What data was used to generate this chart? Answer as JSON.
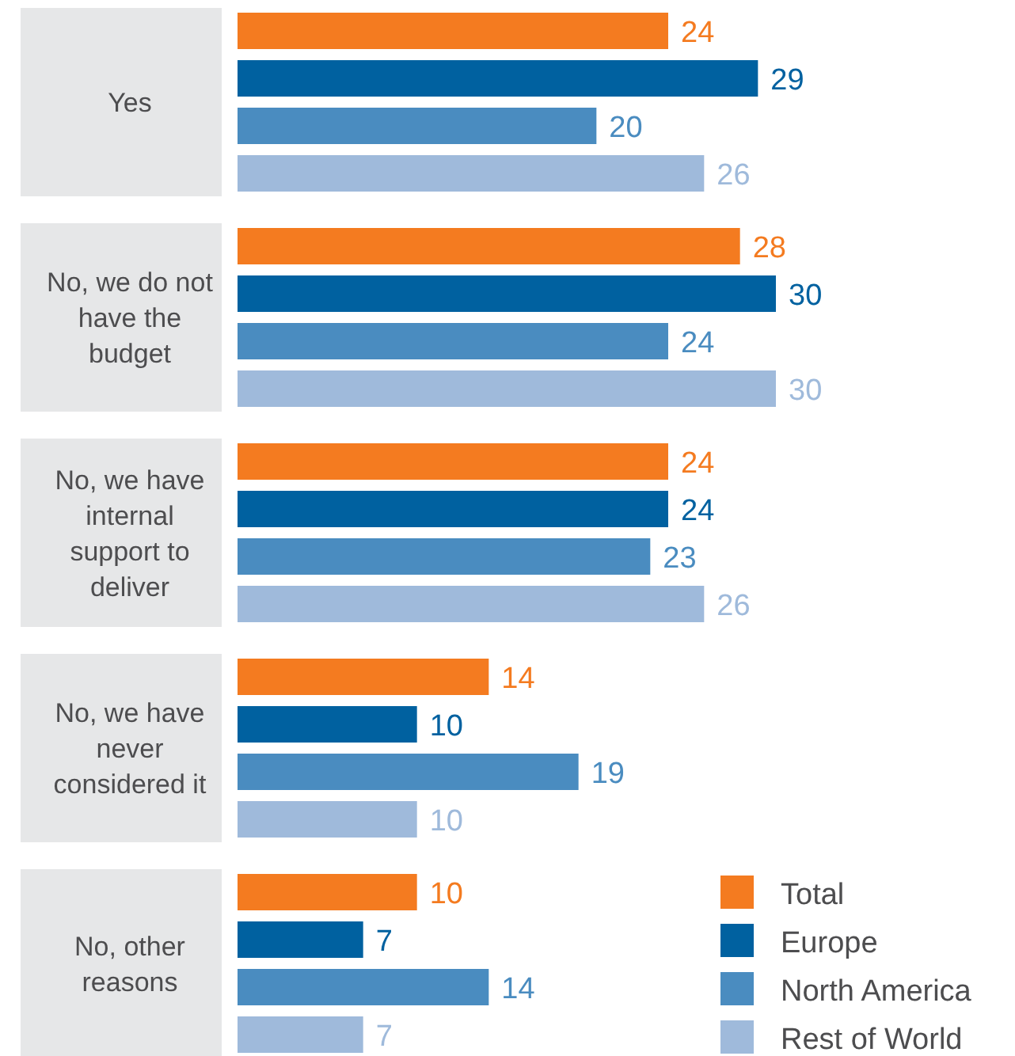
{
  "chart_data": {
    "type": "bar",
    "orientation": "horizontal",
    "categories": [
      "Yes",
      "No, we do not have the budget",
      "No, we have internal support to deliver",
      "No, we have never considered it",
      "No, other reasons"
    ],
    "series": [
      {
        "name": "Total",
        "color": "#f47b20",
        "values": [
          24,
          28,
          24,
          14,
          10
        ]
      },
      {
        "name": "Europe",
        "color": "#0061a0",
        "values": [
          29,
          30,
          24,
          10,
          7
        ]
      },
      {
        "name": "North America",
        "color": "#4a8cc0",
        "values": [
          20,
          24,
          23,
          19,
          14
        ]
      },
      {
        "name": "Rest of World",
        "color": "#9fbadb",
        "values": [
          26,
          30,
          26,
          10,
          7
        ]
      }
    ],
    "data_labels": true,
    "legend": "bottom right"
  }
}
